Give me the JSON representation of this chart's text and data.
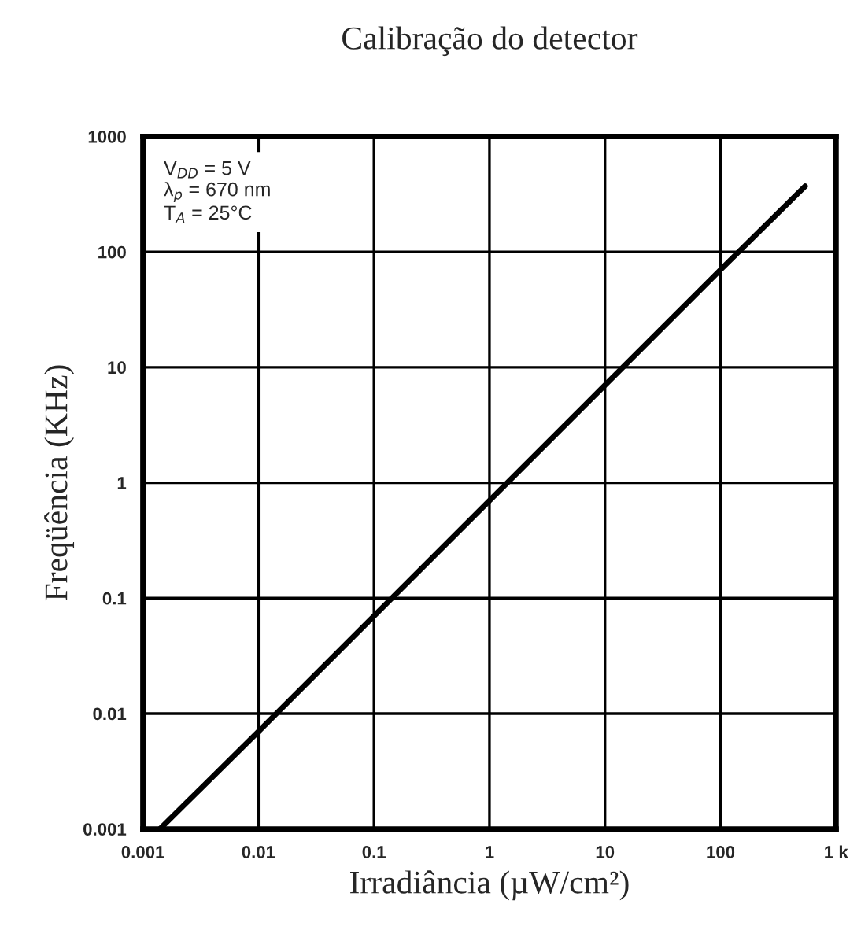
{
  "chart_data": {
    "type": "line",
    "title": "Calibração do detector",
    "xlabel": "Irradiância (µW/cm²)",
    "ylabel": "Freqüência (KHz)",
    "log": "xy",
    "grid": true,
    "marker": "none",
    "line_style": "solid",
    "annotations": [
      "V$_{DD}$ = 5 V",
      "λ$_{p}$ = 670 nm",
      "T$_{A}$ = 25°C"
    ],
    "series": [
      {
        "color": "#000000",
        "x": [
          0.0014,
          0.01,
          0.1,
          1,
          10,
          100,
          540
        ],
        "values": [
          0.001,
          0.007,
          0.07,
          0.7,
          7,
          70,
          370
        ]
      }
    ],
    "xlim": [
      0.001,
      1000
    ],
    "ylim": [
      0.001,
      1000
    ],
    "xticks": [
      0.001,
      0.01,
      0.1,
      1,
      10,
      100,
      {
        "value": 1000,
        "label": "1 k"
      }
    ],
    "yticks": [
      0.001,
      0.01,
      0.1,
      1,
      10,
      100,
      1000
    ]
  }
}
